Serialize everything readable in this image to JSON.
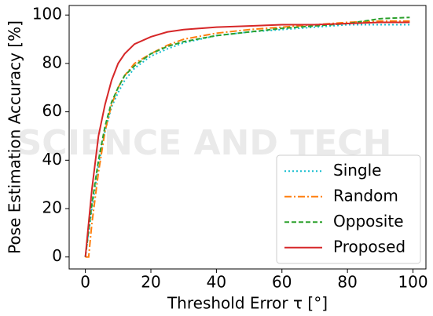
{
  "chart_data": {
    "type": "line",
    "xlabel": "Threshold Error τ [°]",
    "ylabel": "Pose Estimation Accuracy [%]",
    "watermark": "SCIENCE AND TECH",
    "x": [
      0,
      1,
      2,
      4,
      6,
      8,
      10,
      12,
      15,
      20,
      25,
      30,
      40,
      50,
      60,
      70,
      80,
      90,
      99
    ],
    "series": [
      {
        "name": "Single",
        "color": "#17becf",
        "linestyle": "dotted",
        "values": [
          0,
          10,
          20,
          38,
          52,
          62,
          68,
          73,
          78,
          83,
          86,
          88.5,
          91.5,
          93,
          94,
          95,
          96,
          96,
          96
        ]
      },
      {
        "name": "Random",
        "color": "#ff7f0e",
        "linestyle": "dashdot",
        "values": [
          0,
          0,
          14,
          35,
          52,
          63,
          70,
          75,
          80,
          84,
          87.5,
          90,
          92.5,
          94,
          95,
          96,
          97,
          97.5,
          97.5
        ]
      },
      {
        "name": "Opposite",
        "color": "#2ca02c",
        "linestyle": "dashed",
        "values": [
          0,
          11,
          22,
          40,
          54,
          64,
          70,
          75,
          79,
          84,
          87,
          89,
          91.5,
          93,
          94.5,
          95.5,
          96.5,
          98.5,
          99
        ]
      },
      {
        "name": "Proposed",
        "color": "#d62728",
        "linestyle": "solid",
        "values": [
          0,
          14,
          28,
          50,
          63,
          73,
          80,
          84,
          88,
          91,
          93,
          94,
          95,
          95.5,
          96,
          96,
          96.5,
          97,
          97
        ]
      }
    ],
    "xlim": [
      -4.95,
      103.95
    ],
    "ylim": [
      -4.95,
      103.95
    ],
    "xticks": [
      0,
      20,
      40,
      60,
      80,
      100
    ],
    "yticks": [
      0,
      20,
      40,
      60,
      80,
      100
    ],
    "legend": "lower right"
  }
}
